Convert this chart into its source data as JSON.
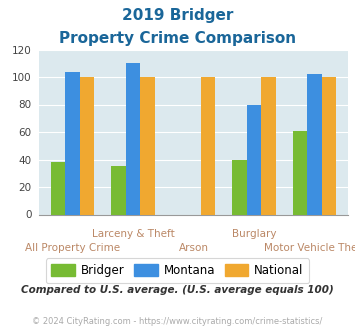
{
  "title_line1": "2019 Bridger",
  "title_line2": "Property Crime Comparison",
  "categories": [
    "All Property Crime",
    "Larceny & Theft",
    "Arson",
    "Burglary",
    "Motor Vehicle Theft"
  ],
  "bridger": [
    38,
    35,
    0,
    40,
    61
  ],
  "montana": [
    104,
    110,
    0,
    80,
    102
  ],
  "national": [
    100,
    100,
    100,
    100,
    100
  ],
  "color_bridger": "#77bb33",
  "color_montana": "#3d8fe0",
  "color_national": "#f0a830",
  "color_title": "#1a6699",
  "color_bg": "#dce9ee",
  "color_footer": "#aaaaaa",
  "color_note": "#333333",
  "color_xlabel": "#bb8866",
  "ylim": [
    0,
    120
  ],
  "yticks": [
    0,
    20,
    40,
    60,
    80,
    100,
    120
  ],
  "legend_labels": [
    "Bridger",
    "Montana",
    "National"
  ],
  "note_text": "Compared to U.S. average. (U.S. average equals 100)",
  "footer_text": "© 2024 CityRating.com - https://www.cityrating.com/crime-statistics/"
}
